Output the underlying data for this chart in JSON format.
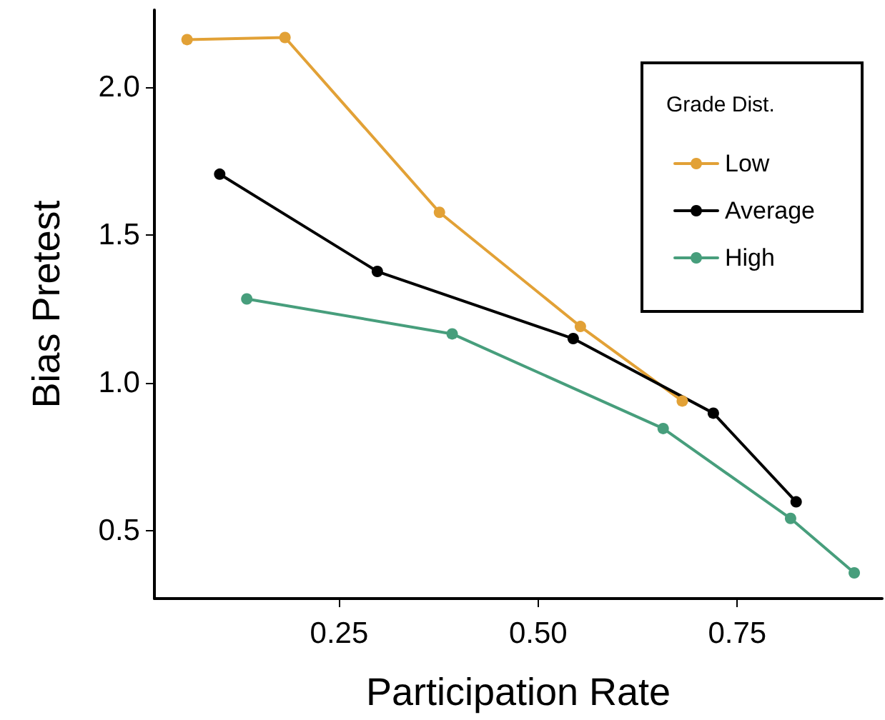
{
  "chart_data": {
    "type": "line",
    "xlabel": "Participation Rate",
    "ylabel": "Bias Pretest",
    "legend_title": "Grade Dist.",
    "series": [
      {
        "name": "Low",
        "color": "#e2a136",
        "x": [
          0.059,
          0.182,
          0.376,
          0.553,
          0.681
        ],
        "values": [
          2.16,
          2.167,
          1.576,
          1.19,
          0.938
        ]
      },
      {
        "name": "Average",
        "color": "#000000",
        "x": [
          0.1,
          0.298,
          0.544,
          0.72,
          0.824
        ],
        "values": [
          1.705,
          1.376,
          1.149,
          0.897,
          0.597
        ]
      },
      {
        "name": "High",
        "color": "#479e7c",
        "x": [
          0.134,
          0.392,
          0.657,
          0.817,
          0.897
        ],
        "values": [
          1.283,
          1.165,
          0.845,
          0.541,
          0.357
        ]
      }
    ],
    "xlim": [
      0.018,
      0.932
    ],
    "ylim": [
      0.27,
      2.26
    ],
    "xticks": [
      {
        "value": 0.25,
        "label": "0.25"
      },
      {
        "value": 0.5,
        "label": "0.50"
      },
      {
        "value": 0.75,
        "label": "0.75"
      }
    ],
    "yticks": [
      {
        "value": 0.5,
        "label": "0.5"
      },
      {
        "value": 1,
        "label": "1.0"
      },
      {
        "value": 1.5,
        "label": "1.5"
      },
      {
        "value": 2,
        "label": "2.0"
      }
    ],
    "grid": false,
    "legend": "top right",
    "marker": "circle",
    "line_style": "solid"
  }
}
